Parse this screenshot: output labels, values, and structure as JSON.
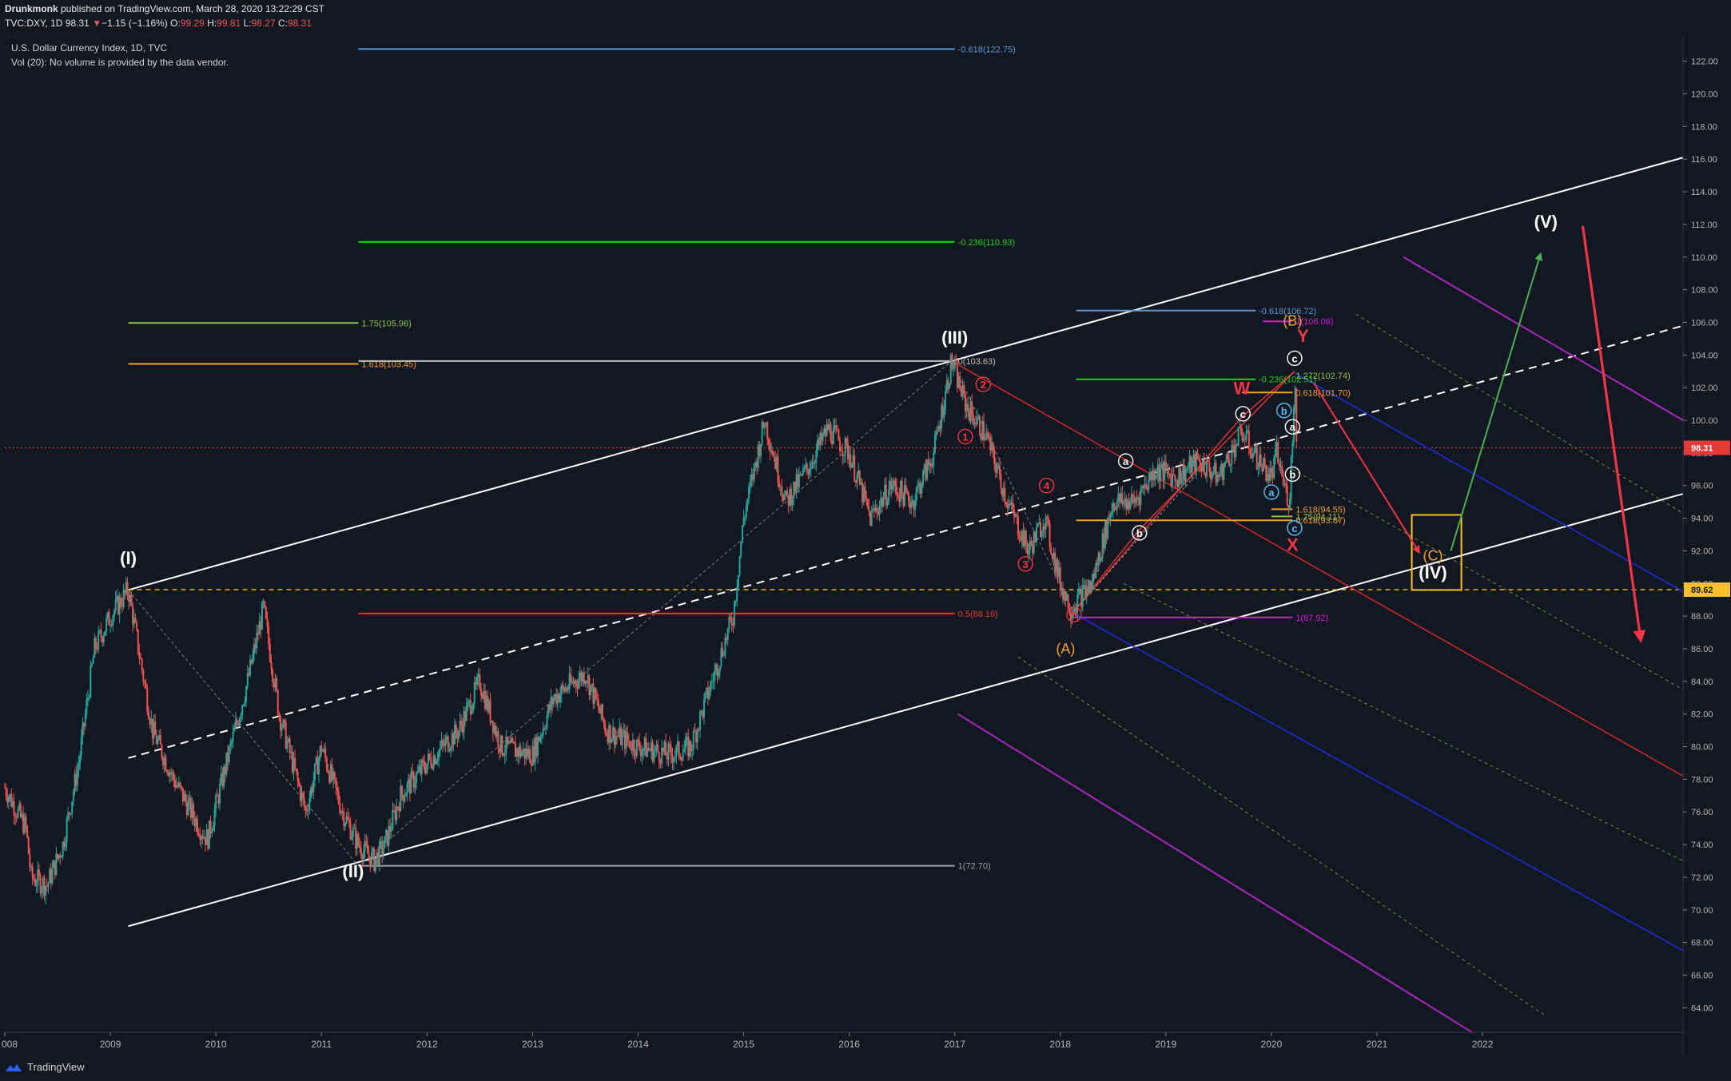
{
  "header": {
    "author": "Drunkmonk",
    "published": " published on TradingView.com, March 28, 2020 13:22:29 CST",
    "symbol": "TVC:DXY, 1D",
    "last": "98.31",
    "arrow": "▼",
    "change": "−1.15 (−1.16%)",
    "o_label": "O:",
    "o": "99.29",
    "h_label": "H:",
    "h": "99.81",
    "l_label": "L:",
    "l": "98.27",
    "c_label": "C:",
    "c": "98.31"
  },
  "legend": {
    "title": "U.S. Dollar Currency Index, 1D, TVC",
    "volume": "Vol (20): No volume is provided by the data vendor."
  },
  "footer": {
    "brand": "TradingView"
  },
  "colors": {
    "background": "#131722",
    "candle_up": "#26a69a",
    "candle_down": "#ef5350",
    "price_marker": "#e53935",
    "support_marker": "#fbc02d"
  },
  "chart_data": {
    "type": "candlestick",
    "symbol": "U.S. Dollar Currency Index",
    "x_ticks": [
      "008",
      "2009",
      "2010",
      "2011",
      "2012",
      "2013",
      "2014",
      "2015",
      "2016",
      "2017",
      "2018",
      "2019",
      "2020",
      "2021",
      "2022"
    ],
    "y_ticks": [
      "64.00",
      "66.00",
      "68.00",
      "70.00",
      "72.00",
      "74.00",
      "76.00",
      "78.00",
      "80.00",
      "82.00",
      "84.00",
      "86.00",
      "88.00",
      "90.00",
      "92.00",
      "94.00",
      "96.00",
      "98.00",
      "100.00",
      "102.00",
      "104.00",
      "106.00",
      "108.00",
      "110.00",
      "112.00",
      "114.00",
      "116.00",
      "118.00",
      "120.00",
      "122.00"
    ],
    "ylim": [
      62.5,
      123.5
    ],
    "xlim": [
      2008.0,
      2023.9
    ],
    "current_price": {
      "value": 98.31,
      "label": "98.31"
    },
    "support_level": {
      "value": 89.62,
      "label": "89.62"
    },
    "price_path": [
      [
        2008.0,
        77.5
      ],
      [
        2008.2,
        75
      ],
      [
        2008.25,
        72
      ],
      [
        2008.4,
        71.5
      ],
      [
        2008.55,
        74
      ],
      [
        2008.7,
        79
      ],
      [
        2008.85,
        86
      ],
      [
        2009.0,
        88
      ],
      [
        2009.17,
        89.6
      ],
      [
        2009.4,
        81
      ],
      [
        2009.6,
        78
      ],
      [
        2009.85,
        75
      ],
      [
        2009.92,
        74.3
      ],
      [
        2010.1,
        79
      ],
      [
        2010.3,
        84
      ],
      [
        2010.45,
        88.5
      ],
      [
        2010.6,
        82
      ],
      [
        2010.85,
        76
      ],
      [
        2011.0,
        80
      ],
      [
        2011.2,
        76
      ],
      [
        2011.35,
        74
      ],
      [
        2011.5,
        73
      ],
      [
        2011.6,
        74
      ],
      [
        2011.75,
        77
      ],
      [
        2012.0,
        79
      ],
      [
        2012.3,
        81
      ],
      [
        2012.5,
        84
      ],
      [
        2012.7,
        80
      ],
      [
        2013.0,
        79.5
      ],
      [
        2013.2,
        83
      ],
      [
        2013.5,
        84.5
      ],
      [
        2013.7,
        81
      ],
      [
        2014.0,
        80
      ],
      [
        2014.3,
        79.5
      ],
      [
        2014.5,
        80
      ],
      [
        2014.7,
        84
      ],
      [
        2014.9,
        88
      ],
      [
        2015.0,
        94
      ],
      [
        2015.2,
        100
      ],
      [
        2015.4,
        95
      ],
      [
        2015.6,
        97
      ],
      [
        2015.8,
        99.5
      ],
      [
        2016.0,
        98
      ],
      [
        2016.2,
        94
      ],
      [
        2016.4,
        96
      ],
      [
        2016.6,
        95
      ],
      [
        2016.8,
        98
      ],
      [
        2016.97,
        103.6
      ],
      [
        2017.1,
        101
      ],
      [
        2017.3,
        99
      ],
      [
        2017.5,
        95
      ],
      [
        2017.7,
        92
      ],
      [
        2017.85,
        94
      ],
      [
        2018.0,
        90
      ],
      [
        2018.1,
        88.5
      ],
      [
        2018.3,
        90
      ],
      [
        2018.5,
        95
      ],
      [
        2018.7,
        95
      ],
      [
        2018.9,
        97
      ],
      [
        2019.1,
        96.5
      ],
      [
        2019.3,
        97.5
      ],
      [
        2019.5,
        96.5
      ],
      [
        2019.72,
        99.3
      ],
      [
        2019.85,
        97.8
      ],
      [
        2020.0,
        96.5
      ],
      [
        2020.05,
        98
      ],
      [
        2020.12,
        96
      ],
      [
        2020.17,
        95
      ],
      [
        2020.2,
        99
      ],
      [
        2020.22,
        102.9
      ],
      [
        2020.24,
        98.3
      ]
    ],
    "annotations": [
      {
        "text": "(I)",
        "x": 2009.17,
        "y": 91.2,
        "color": "#ffffff",
        "style": "bold"
      },
      {
        "text": "(II)",
        "x": 2011.3,
        "y": 72.0,
        "color": "#ffffff",
        "style": "bold"
      },
      {
        "text": "(III)",
        "x": 2017.0,
        "y": 104.7,
        "color": "#ffffff",
        "style": "bold"
      },
      {
        "text": "(IV)",
        "x": 2021.53,
        "y": 90.3,
        "color": "#ffffff",
        "style": "bold"
      },
      {
        "text": "(V)",
        "x": 2022.6,
        "y": 111.8,
        "color": "#ffffff",
        "style": "bold"
      },
      {
        "text": "(A)",
        "x": 2018.05,
        "y": 85.7,
        "color": "#f0a030",
        "style": "plain"
      },
      {
        "text": "(B)",
        "x": 2020.2,
        "y": 105.8,
        "color": "#f0a030",
        "style": "plain"
      },
      {
        "text": "(C)",
        "x": 2021.53,
        "y": 91.4,
        "color": "#f0a030",
        "style": "plain"
      },
      {
        "text": "W",
        "x": 2019.72,
        "y": 101.6,
        "color": "#f23645",
        "style": "bold"
      },
      {
        "text": "Y",
        "x": 2020.3,
        "y": 104.8,
        "color": "#f23645",
        "style": "bold"
      },
      {
        "text": "X",
        "x": 2020.2,
        "y": 92.0,
        "color": "#f23645",
        "style": "bold"
      }
    ],
    "circled_labels": [
      {
        "text": "1",
        "x": 2017.1,
        "y": 99.0,
        "color": "#f23645"
      },
      {
        "text": "2",
        "x": 2017.27,
        "y": 102.2,
        "color": "#f23645"
      },
      {
        "text": "3",
        "x": 2017.67,
        "y": 91.2,
        "color": "#f23645"
      },
      {
        "text": "4",
        "x": 2017.87,
        "y": 96.0,
        "color": "#f23645"
      },
      {
        "text": "5",
        "x": 2018.13,
        "y": 88.1,
        "color": "#f23645"
      },
      {
        "text": "a",
        "x": 2018.62,
        "y": 97.5,
        "color": "#ffffff"
      },
      {
        "text": "b",
        "x": 2018.75,
        "y": 93.1,
        "color": "#ffffff"
      },
      {
        "text": "c",
        "x": 2019.73,
        "y": 100.4,
        "color": "#ffffff"
      },
      {
        "text": "a",
        "x": 2020.2,
        "y": 99.6,
        "color": "#ffffff"
      },
      {
        "text": "b",
        "x": 2020.2,
        "y": 96.7,
        "color": "#ffffff"
      },
      {
        "text": "c",
        "x": 2020.22,
        "y": 103.8,
        "color": "#ffffff"
      },
      {
        "text": "a",
        "x": 2020.0,
        "y": 95.6,
        "color": "#4fc3f7"
      },
      {
        "text": "b",
        "x": 2020.12,
        "y": 100.6,
        "color": "#4fc3f7"
      },
      {
        "text": "c",
        "x": 2020.22,
        "y": 93.4,
        "color": "#4fc3f7"
      }
    ],
    "fib_levels": [
      {
        "label": "-0.618(122.75)",
        "value": 122.75,
        "x0": 2011.35,
        "x1": 2017.0,
        "color": "#5b9bd5",
        "label_side": "right"
      },
      {
        "label": "-0.236(110.93)",
        "value": 110.93,
        "x0": 2011.35,
        "x1": 2017.0,
        "color": "#1fd11f",
        "label_side": "right"
      },
      {
        "label": "1.75(105.96)",
        "value": 105.96,
        "x0": 2009.17,
        "x1": 2011.35,
        "color": "#8bc34a",
        "label_side": "right"
      },
      {
        "label": "1.618(103.45)",
        "value": 103.45,
        "x0": 2009.17,
        "x1": 2011.35,
        "color": "#f0a030",
        "label_side": "right"
      },
      {
        "label": "0.5(88.16)",
        "value": 88.16,
        "x0": 2011.35,
        "x1": 2017.0,
        "color": "#e53935",
        "label_side": "right"
      },
      {
        "label": "1(72.70)",
        "value": 72.7,
        "x0": 2011.35,
        "x1": 2017.0,
        "color": "#9e9e9e",
        "label_side": "right"
      },
      {
        "label": "0(103.63)",
        "value": 103.63,
        "x0": 2011.35,
        "x1": 2017.0,
        "color": "#bdbdbd",
        "label_side": "right"
      },
      {
        "label": "-0.618(106.72)",
        "value": 106.72,
        "x0": 2018.15,
        "x1": 2019.85,
        "color": "#5b9bd5",
        "label_side": "right"
      },
      {
        "label": "1(106.06)",
        "value": 106.06,
        "x0": 2019.92,
        "x1": 2020.2,
        "color": "#d81bd8",
        "label_side": "right"
      },
      {
        "label": "-0.236(102.51)",
        "value": 102.51,
        "x0": 2018.15,
        "x1": 2019.85,
        "color": "#1fd11f",
        "label_side": "right"
      },
      {
        "label": "1.272(102.74)",
        "value": 102.74,
        "x0": 2020.2,
        "x1": 2020.2,
        "color": "#8bc34a",
        "label_side": "right"
      },
      {
        "label": "0.618(101.70)",
        "value": 101.7,
        "x0": 2019.72,
        "x1": 2020.2,
        "color": "#f0a030",
        "label_side": "right"
      },
      {
        "label": "1.618(94.55)",
        "value": 94.55,
        "x0": 2020.0,
        "x1": 2020.2,
        "color": "#f0a030",
        "label_side": "right"
      },
      {
        "label": "1.75(94.11)",
        "value": 94.11,
        "x0": 2020.0,
        "x1": 2020.2,
        "color": "#8bc34a",
        "label_side": "right"
      },
      {
        "label": "0.618(93.87)",
        "value": 93.87,
        "x0": 2018.15,
        "x1": 2020.2,
        "color": "#f0a030",
        "label_side": "right"
      },
      {
        "label": "1(87.92)",
        "value": 87.92,
        "x0": 2018.15,
        "x1": 2020.2,
        "color": "#d81bd8",
        "label_side": "right"
      }
    ]
  }
}
